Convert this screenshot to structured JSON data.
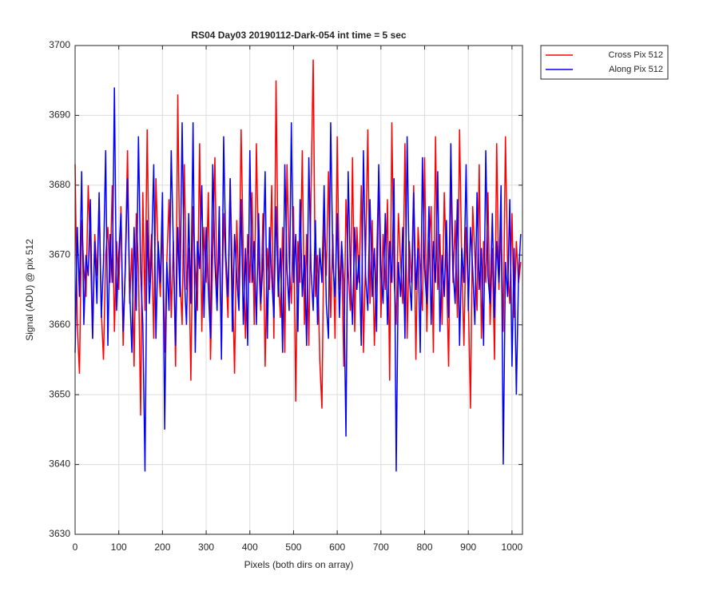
{
  "chart_data": {
    "type": "line",
    "title": "RS04 Day03 20190112-Dark-054 int time = 5 sec",
    "x_label": "Pixels (both dirs on array)",
    "y_label": "Signal (ADU) @ pix 512",
    "xlim": [
      0,
      1024
    ],
    "xticks": [
      0,
      100,
      200,
      300,
      400,
      500,
      600,
      700,
      800,
      900,
      1000
    ],
    "ylim": [
      3630,
      3700
    ],
    "yticks": [
      3630,
      3640,
      3650,
      3660,
      3670,
      3680,
      3690,
      3700
    ],
    "grid": true,
    "legend": "outside-top-right",
    "x": [
      0,
      5,
      10,
      15,
      20,
      25,
      30,
      35,
      40,
      45,
      50,
      55,
      60,
      65,
      70,
      75,
      80,
      85,
      90,
      95,
      100,
      105,
      110,
      115,
      120,
      125,
      130,
      135,
      140,
      145,
      150,
      155,
      160,
      165,
      170,
      175,
      180,
      185,
      190,
      195,
      200,
      205,
      210,
      215,
      220,
      225,
      230,
      235,
      240,
      245,
      250,
      255,
      260,
      265,
      270,
      275,
      280,
      285,
      290,
      295,
      300,
      305,
      310,
      315,
      320,
      325,
      330,
      335,
      340,
      345,
      350,
      355,
      360,
      365,
      370,
      375,
      380,
      385,
      390,
      395,
      400,
      405,
      410,
      415,
      420,
      425,
      430,
      435,
      440,
      445,
      450,
      455,
      460,
      465,
      470,
      475,
      480,
      485,
      490,
      495,
      500,
      505,
      510,
      515,
      520,
      525,
      530,
      535,
      540,
      545,
      550,
      555,
      560,
      565,
      570,
      575,
      580,
      585,
      590,
      595,
      600,
      605,
      610,
      615,
      620,
      625,
      630,
      635,
      640,
      645,
      650,
      655,
      660,
      665,
      670,
      675,
      680,
      685,
      690,
      695,
      700,
      705,
      710,
      715,
      720,
      725,
      730,
      735,
      740,
      745,
      750,
      755,
      760,
      765,
      770,
      775,
      780,
      785,
      790,
      795,
      800,
      805,
      810,
      815,
      820,
      825,
      830,
      835,
      840,
      845,
      850,
      855,
      860,
      865,
      870,
      875,
      880,
      885,
      890,
      895,
      900,
      905,
      910,
      915,
      920,
      925,
      930,
      935,
      940,
      945,
      950,
      955,
      960,
      965,
      970,
      975,
      980,
      985,
      990,
      995,
      1000,
      1005,
      1010,
      1015,
      1020
    ],
    "series": [
      {
        "name": "Cross Pix 512",
        "color": "#ff0000",
        "values": [
          3683,
          3660,
          3653,
          3675,
          3668,
          3664,
          3680,
          3671,
          3658,
          3673,
          3667,
          3678,
          3662,
          3655,
          3670,
          3674,
          3666,
          3680,
          3659,
          3672,
          3665,
          3677,
          3657,
          3669,
          3685,
          3663,
          3671,
          3654,
          3676,
          3668,
          3647,
          3679,
          3662,
          3688,
          3666,
          3673,
          3658,
          3681,
          3670,
          3664,
          3675,
          3656,
          3669,
          3678,
          3661,
          3672,
          3654,
          3693,
          3667,
          3660,
          3683,
          3665,
          3671,
          3652,
          3677,
          3668,
          3662,
          3686,
          3659,
          3674,
          3666,
          3679,
          3655,
          3670,
          3684,
          3663,
          3672,
          3657,
          3676,
          3668,
          3661,
          3681,
          3667,
          3653,
          3675,
          3664,
          3688,
          3670,
          3658,
          3673,
          3666,
          3679,
          3660,
          3686,
          3669,
          3662,
          3676,
          3654,
          3671,
          3665,
          3680,
          3658,
          3695,
          3667,
          3661,
          3674,
          3656,
          3683,
          3669,
          3663,
          3677,
          3649,
          3672,
          3666,
          3685,
          3660,
          3673,
          3657,
          3679,
          3698,
          3664,
          3670,
          3655,
          3648,
          3676,
          3667,
          3682,
          3661,
          3673,
          3658,
          3687,
          3665,
          3671,
          3654,
          3678,
          3668,
          3662,
          3684,
          3659,
          3674,
          3666,
          3680,
          3656,
          3670,
          3688,
          3663,
          3675,
          3657,
          3669,
          3682,
          3661,
          3673,
          3665,
          3678,
          3652,
          3689,
          3667,
          3660,
          3676,
          3669,
          3663,
          3686,
          3658,
          3672,
          3666,
          3680,
          3655,
          3674,
          3668,
          3662,
          3684,
          3659,
          3671,
          3677,
          3656,
          3687,
          3665,
          3673,
          3660,
          3679,
          3668,
          3654,
          3682,
          3666,
          3675,
          3661,
          3688,
          3669,
          3657,
          3674,
          3664,
          3648,
          3677,
          3670,
          3662,
          3683,
          3658,
          3672,
          3666,
          3679,
          3660,
          3671,
          3655,
          3686,
          3665,
          3674,
          3659,
          3687,
          3668,
          3663,
          3676,
          3661,
          3672,
          3666,
          3669
        ]
      },
      {
        "name": "Along Pix 512",
        "color": "#0000ff",
        "values": [
          3656,
          3674,
          3664,
          3682,
          3660,
          3670,
          3667,
          3678,
          3658,
          3672,
          3663,
          3679,
          3661,
          3669,
          3685,
          3657,
          3673,
          3666,
          3694,
          3662,
          3670,
          3676,
          3659,
          3668,
          3681,
          3665,
          3656,
          3674,
          3662,
          3687,
          3668,
          3660,
          3639,
          3675,
          3663,
          3670,
          3683,
          3658,
          3672,
          3666,
          3679,
          3645,
          3669,
          3662,
          3685,
          3671,
          3657,
          3674,
          3664,
          3689,
          3667,
          3660,
          3676,
          3663,
          3689,
          3656,
          3672,
          3668,
          3680,
          3661,
          3674,
          3665,
          3658,
          3683,
          3669,
          3662,
          3677,
          3655,
          3687,
          3670,
          3664,
          3681,
          3659,
          3673,
          3667,
          3662,
          3678,
          3660,
          3671,
          3657,
          3685,
          3666,
          3672,
          3660,
          3676,
          3663,
          3669,
          3682,
          3658,
          3674,
          3667,
          3661,
          3677,
          3664,
          3671,
          3656,
          3683,
          3668,
          3662,
          3689,
          3666,
          3673,
          3659,
          3678,
          3664,
          3670,
          3657,
          3684,
          3668,
          3662,
          3675,
          3660,
          3671,
          3666,
          3680,
          3663,
          3658,
          3689,
          3669,
          3664,
          3676,
          3661,
          3672,
          3666,
          3644,
          3682,
          3668,
          3660,
          3674,
          3665,
          3670,
          3657,
          3685,
          3667,
          3662,
          3678,
          3664,
          3671,
          3659,
          3683,
          3668,
          3663,
          3676,
          3660,
          3672,
          3666,
          3681,
          3639,
          3669,
          3664,
          3674,
          3658,
          3687,
          3667,
          3662,
          3679,
          3665,
          3671,
          3656,
          3684,
          3668,
          3663,
          3677,
          3660,
          3672,
          3666,
          3682,
          3659,
          3670,
          3664,
          3675,
          3661,
          3686,
          3668,
          3663,
          3678,
          3657,
          3671,
          3666,
          3683,
          3662,
          3674,
          3668,
          3660,
          3679,
          3665,
          3671,
          3657,
          3685,
          3667,
          3663,
          3676,
          3661,
          3672,
          3666,
          3680,
          3640,
          3669,
          3664,
          3678,
          3654,
          3671,
          3650,
          3667,
          3673
        ]
      }
    ]
  }
}
